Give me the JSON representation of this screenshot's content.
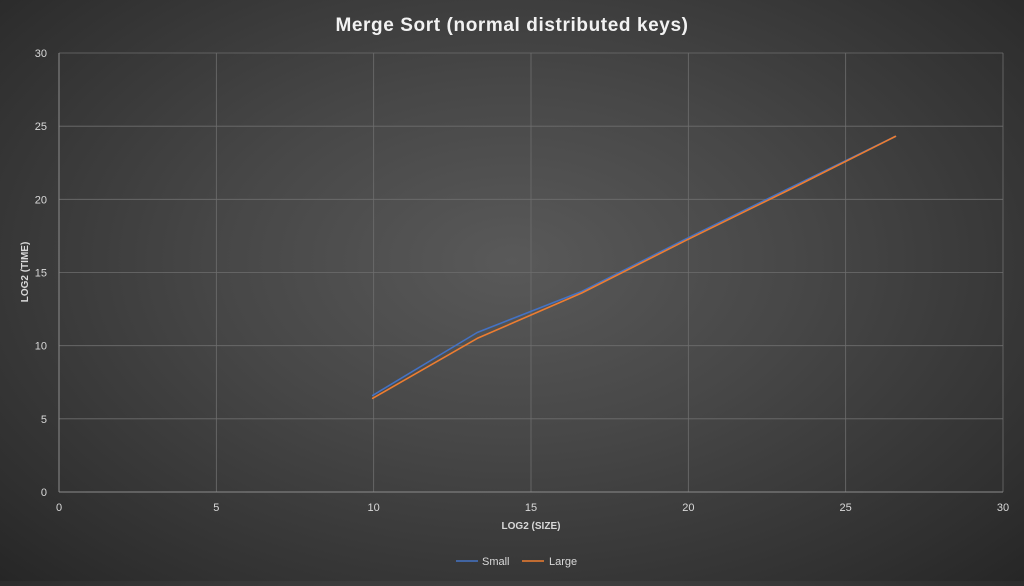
{
  "chart_data": {
    "type": "line",
    "title": "Merge Sort (normal distributed keys)",
    "xlabel": "LOG2 (SIZE)",
    "ylabel": "LOG2 (TIME)",
    "xlim": [
      0,
      30
    ],
    "ylim": [
      0,
      30
    ],
    "x_ticks": [
      "0",
      "5",
      "10",
      "15",
      "20",
      "25",
      "30"
    ],
    "y_ticks": [
      "0",
      "5",
      "10",
      "15",
      "20",
      "25",
      "30"
    ],
    "grid": true,
    "legend_position": "bottom",
    "series": [
      {
        "name": "Small",
        "color": "#4472c4",
        "x": [
          9.97,
          13.29,
          16.61,
          19.93,
          23.25,
          26.58
        ],
        "y": [
          6.6,
          10.9,
          13.7,
          17.3,
          20.8,
          24.3
        ]
      },
      {
        "name": "Large",
        "color": "#ed7d31",
        "x": [
          9.97,
          13.29,
          16.61,
          19.93,
          23.25,
          26.58
        ],
        "y": [
          6.4,
          10.5,
          13.6,
          17.2,
          20.7,
          24.3
        ]
      }
    ]
  }
}
